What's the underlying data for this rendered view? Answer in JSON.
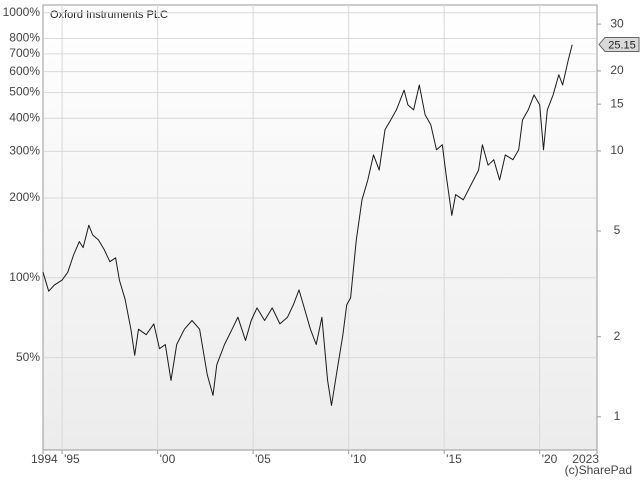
{
  "chart_data": {
    "type": "line",
    "title": "Oxford Instruments PLC",
    "credit": "(c)SharePad",
    "log_scale": true,
    "grid": true,
    "xlim": [
      1994,
      2023
    ],
    "xticks": [
      {
        "value": 1994,
        "label": "1994"
      },
      {
        "value": 1995,
        "label": "'95"
      },
      {
        "value": 2000,
        "label": "'00"
      },
      {
        "value": 2005,
        "label": "'05"
      },
      {
        "value": 2010,
        "label": "'10"
      },
      {
        "value": 2015,
        "label": "'15"
      },
      {
        "value": 2020,
        "label": "'20"
      },
      {
        "value": 2023,
        "label": "2023"
      }
    ],
    "ylim": [
      22.4,
      1070
    ],
    "yticks": [
      {
        "value": 50,
        "label": "50%"
      },
      {
        "value": 100,
        "label": "100%"
      },
      {
        "value": 200,
        "label": "200%"
      },
      {
        "value": 300,
        "label": "300%"
      },
      {
        "value": 400,
        "label": "400%"
      },
      {
        "value": 500,
        "label": "500%"
      },
      {
        "value": 600,
        "label": "600%"
      },
      {
        "value": 700,
        "label": "700%"
      },
      {
        "value": 800,
        "label": "800%"
      },
      {
        "value": 1000,
        "label": "1000%"
      }
    ],
    "y2lim": [
      0.75,
      35.4
    ],
    "y2ticks": [
      1,
      2,
      5,
      10,
      15,
      20,
      30
    ],
    "last_price": 25.15,
    "series": [
      {
        "name": "Oxford Instruments PLC",
        "color": "#1a1a1a",
        "x": [
          1994.0,
          1994.3,
          1994.6,
          1995.0,
          1995.3,
          1995.6,
          1995.9,
          1996.1,
          1996.4,
          1996.6,
          1996.9,
          1997.2,
          1997.5,
          1997.8,
          1998.0,
          1998.3,
          1998.6,
          1998.8,
          1999.0,
          1999.4,
          1999.8,
          2000.1,
          2000.4,
          2000.7,
          2001.0,
          2001.4,
          2001.8,
          2002.2,
          2002.6,
          2002.9,
          2003.1,
          2003.5,
          2003.9,
          2004.2,
          2004.6,
          2004.9,
          2005.2,
          2005.6,
          2006.0,
          2006.4,
          2006.8,
          2007.1,
          2007.4,
          2007.7,
          2008.0,
          2008.3,
          2008.6,
          2008.9,
          2009.1,
          2009.4,
          2009.7,
          2009.9,
          2010.1,
          2010.4,
          2010.7,
          2011.0,
          2011.3,
          2011.6,
          2011.9,
          2012.2,
          2012.5,
          2012.9,
          2013.1,
          2013.4,
          2013.7,
          2014.0,
          2014.3,
          2014.6,
          2014.9,
          2015.1,
          2015.4,
          2015.6,
          2016.0,
          2016.4,
          2016.8,
          2017.0,
          2017.3,
          2017.6,
          2017.9,
          2018.2,
          2018.6,
          2018.9,
          2019.1,
          2019.4,
          2019.7,
          2020.0,
          2020.2,
          2020.4,
          2020.7,
          2021.0,
          2021.2,
          2021.5,
          2021.7
        ],
        "values": [
          105,
          89,
          94,
          98,
          105,
          122,
          137,
          130,
          158,
          145,
          139,
          128,
          115,
          119,
          98,
          83,
          64,
          51,
          64,
          61,
          67,
          54,
          56,
          41,
          56,
          64,
          69,
          64,
          43,
          36,
          47,
          56,
          64,
          71,
          58,
          69,
          77,
          69,
          77,
          67,
          71,
          79,
          90,
          76,
          64,
          56,
          71,
          41,
          33,
          45,
          61,
          79,
          84,
          139,
          197,
          234,
          291,
          255,
          362,
          394,
          430,
          511,
          449,
          430,
          534,
          412,
          378,
          304,
          318,
          245,
          172,
          206,
          197,
          224,
          255,
          318,
          266,
          279,
          234,
          291,
          279,
          304,
          394,
          430,
          490,
          449,
          304,
          430,
          490,
          584,
          534,
          664,
          758
        ]
      }
    ]
  }
}
